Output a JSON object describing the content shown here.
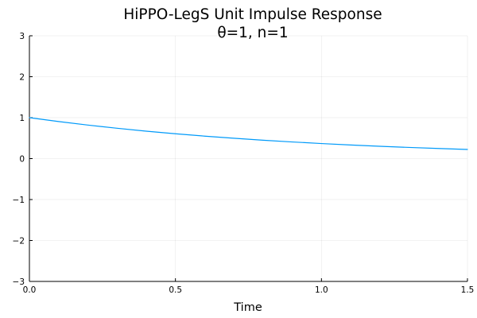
{
  "chart_data": {
    "type": "line",
    "title": "HiPPO-LegS Unit Impulse Response",
    "subtitle": "θ=1, n=1",
    "xlabel": "Time",
    "ylabel": "",
    "xlim": [
      0,
      1.5
    ],
    "ylim": [
      -3,
      3
    ],
    "xticks": [
      0,
      0.5,
      1.0,
      1.5
    ],
    "xtick_labels": [
      "0.0",
      "0.5",
      "1.0",
      "1.5"
    ],
    "yticks": [
      -3,
      -2,
      -1,
      0,
      1,
      2,
      3
    ],
    "ytick_labels": [
      "−3",
      "−2",
      "−1",
      "0",
      "1",
      "2",
      "3"
    ],
    "grid": true,
    "legend": "none",
    "series": [
      {
        "color": "#009AFA",
        "x": [
          0,
          0.1,
          0.2,
          0.3,
          0.4,
          0.5,
          0.6,
          0.7,
          0.8,
          0.9,
          1.0,
          1.1,
          1.2,
          1.3,
          1.4,
          1.5
        ],
        "y": [
          1.0,
          0.905,
          0.819,
          0.741,
          0.67,
          0.607,
          0.549,
          0.497,
          0.449,
          0.407,
          0.368,
          0.333,
          0.301,
          0.273,
          0.247,
          0.223
        ]
      }
    ]
  }
}
